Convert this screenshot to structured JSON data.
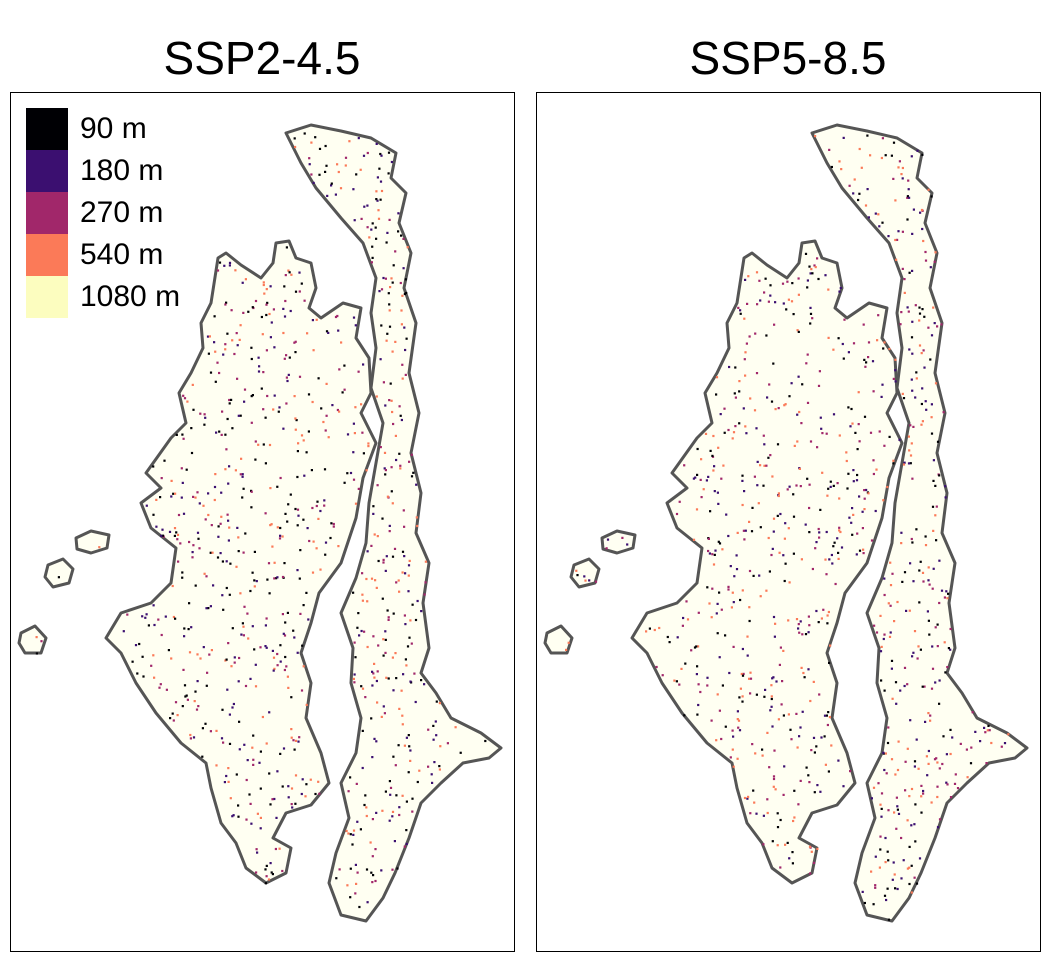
{
  "panels": [
    {
      "title": "SSP2-4.5"
    },
    {
      "title": "SSP5-8.5"
    }
  ],
  "legend": {
    "items": [
      {
        "label": "90 m",
        "color": "#000004"
      },
      {
        "label": "180 m",
        "color": "#3b0f70"
      },
      {
        "label": "270 m",
        "color": "#a1276a"
      },
      {
        "label": "540 m",
        "color": "#fb7a58"
      },
      {
        "label": "1080 m",
        "color": "#fcfdbf"
      }
    ]
  },
  "colors": {
    "outline": "#555555",
    "land_fill": "#fffff2",
    "frame": "#000000"
  }
}
